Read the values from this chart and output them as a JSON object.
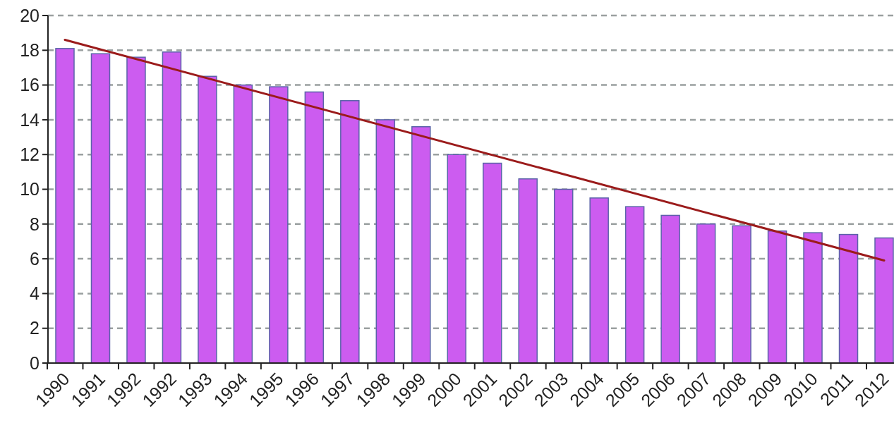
{
  "chart_data": {
    "type": "bar",
    "categories": [
      "1990",
      "1991",
      "1992",
      "1992",
      "1993",
      "1994",
      "1995",
      "1996",
      "1997",
      "1998",
      "1999",
      "2000",
      "2001",
      "2002",
      "2003",
      "2004",
      "2005",
      "2006",
      "2007",
      "2008",
      "2009",
      "2010",
      "2011",
      "2012"
    ],
    "series": [
      {
        "type": "bar",
        "color": "#cc5cf0",
        "values": [
          18.1,
          17.8,
          17.6,
          17.9,
          16.5,
          16.0,
          15.9,
          15.6,
          15.1,
          14.0,
          13.6,
          12.0,
          11.5,
          10.6,
          10.0,
          9.5,
          9.0,
          8.5,
          8.0,
          7.9,
          7.6,
          7.5,
          7.4,
          7.2
        ]
      },
      {
        "type": "line",
        "color": "#9b1b1b",
        "values": [
          18.6,
          null,
          null,
          null,
          null,
          null,
          null,
          null,
          null,
          null,
          null,
          null,
          null,
          null,
          null,
          null,
          null,
          null,
          null,
          null,
          null,
          null,
          null,
          5.9
        ]
      }
    ],
    "ylim": [
      0,
      20
    ],
    "yticks": [
      0,
      2,
      4,
      6,
      8,
      10,
      12,
      14,
      16,
      18,
      20
    ],
    "grid": "y"
  }
}
